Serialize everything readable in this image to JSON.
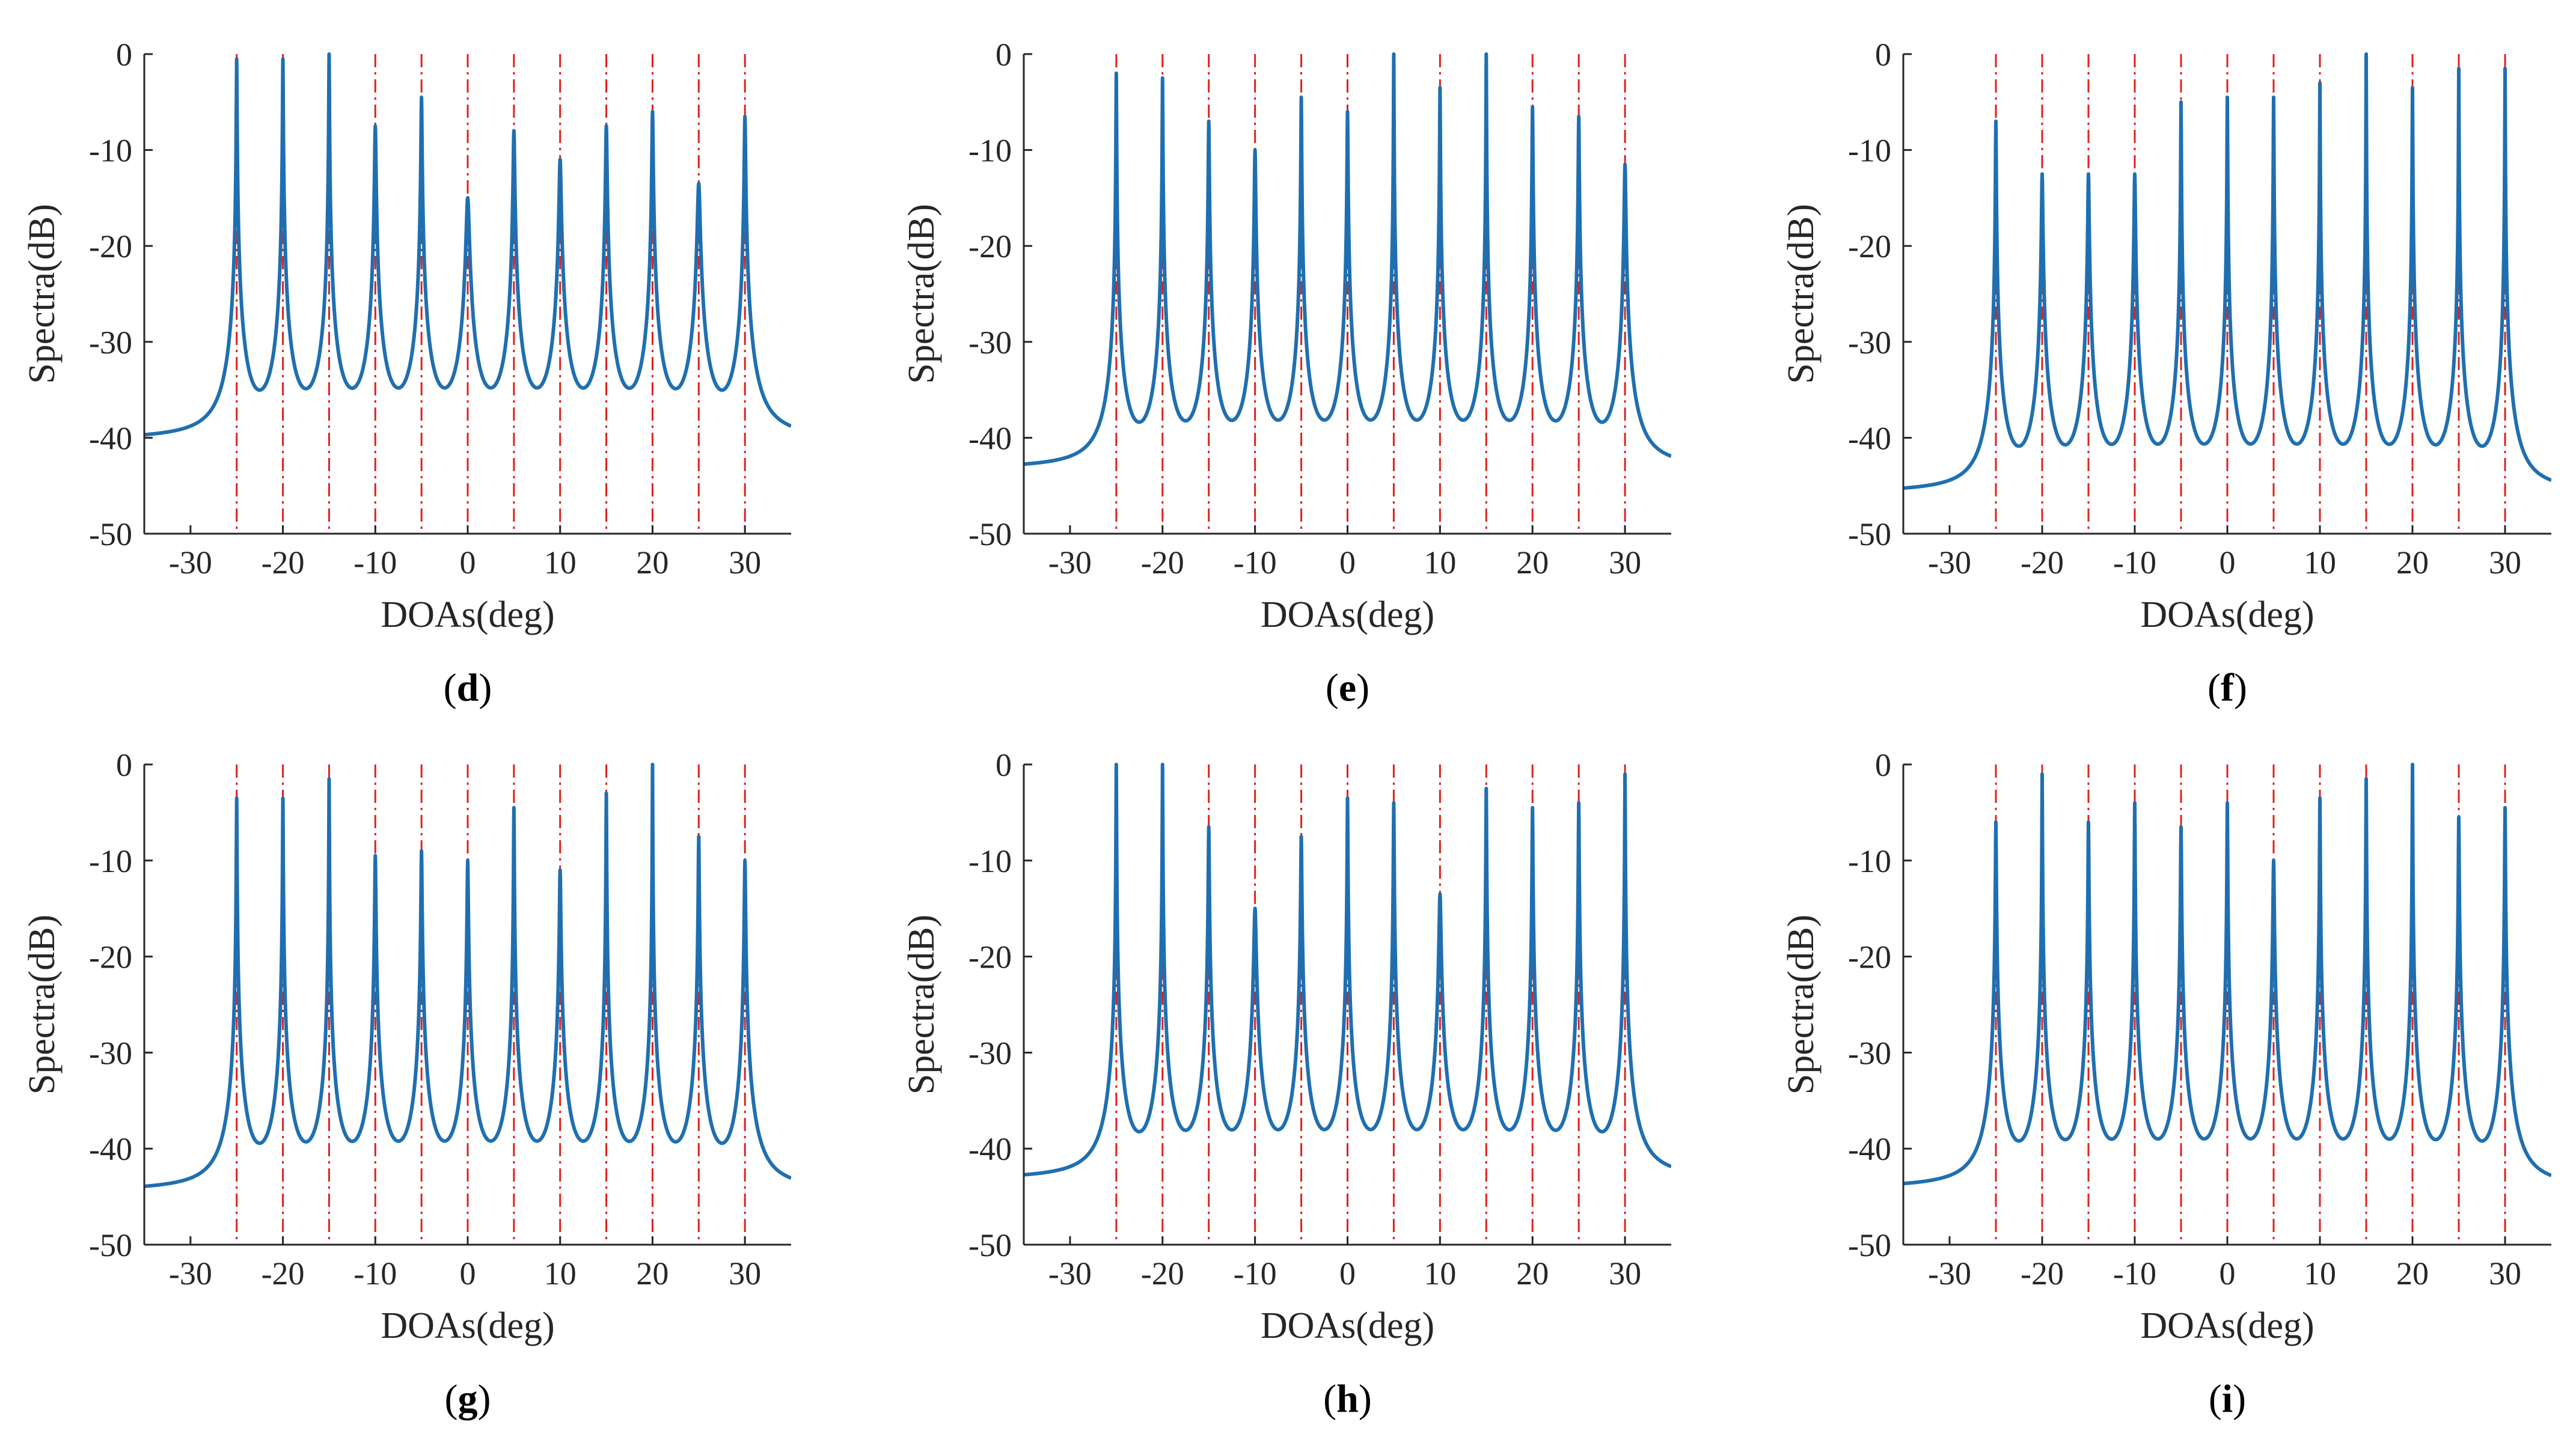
{
  "figure": {
    "colors": {
      "spectrum": "#1f6fb0",
      "marker": "#e0201c",
      "axis": "#262626"
    }
  },
  "chart_data": [
    {
      "type": "line",
      "panel": "(d)",
      "panel_letter": "d",
      "xlabel": "DOAs(deg)",
      "ylabel": "Spectra(dB)",
      "xlim": [
        -35,
        35
      ],
      "ylim": [
        -50,
        0
      ],
      "xticks": [
        -30,
        -20,
        -10,
        0,
        10,
        20,
        30
      ],
      "yticks": [
        0,
        -10,
        -20,
        -30,
        -40,
        -50
      ],
      "true_doas": [
        -25,
        -20,
        -15,
        -10,
        -5,
        0,
        5,
        10,
        15,
        20,
        25,
        30
      ],
      "series": [
        {
          "name": "spectrum",
          "floor_db": -40.3,
          "valley_db": -40.0,
          "peaks": [
            {
              "doa": -25,
              "db": -0.5
            },
            {
              "doa": -20,
              "db": -0.5
            },
            {
              "doa": -15,
              "db": 0
            },
            {
              "doa": -10,
              "db": -7.5
            },
            {
              "doa": -5,
              "db": -4.5
            },
            {
              "doa": 0,
              "db": -15
            },
            {
              "doa": 5,
              "db": -8
            },
            {
              "doa": 10,
              "db": -11
            },
            {
              "doa": 15,
              "db": -7.5
            },
            {
              "doa": 20,
              "db": -6
            },
            {
              "doa": 25,
              "db": -13.5
            },
            {
              "doa": 30,
              "db": -6.5
            }
          ]
        }
      ]
    },
    {
      "type": "line",
      "panel": "(e)",
      "panel_letter": "e",
      "xlabel": "DOAs(deg)",
      "ylabel": "Spectra(dB)",
      "xlim": [
        -35,
        35
      ],
      "ylim": [
        -50,
        0
      ],
      "xticks": [
        -30,
        -20,
        -10,
        0,
        10,
        20,
        30
      ],
      "yticks": [
        0,
        -10,
        -20,
        -30,
        -40,
        -50
      ],
      "true_doas": [
        -25,
        -20,
        -15,
        -10,
        -5,
        0,
        5,
        10,
        15,
        20,
        25,
        30
      ],
      "series": [
        {
          "name": "spectrum",
          "floor_db": -43.3,
          "valley_db": -43.5,
          "peaks": [
            {
              "doa": -25,
              "db": -2
            },
            {
              "doa": -20,
              "db": -2.5
            },
            {
              "doa": -15,
              "db": -7
            },
            {
              "doa": -10,
              "db": -10
            },
            {
              "doa": -5,
              "db": -4.5
            },
            {
              "doa": 0,
              "db": -6
            },
            {
              "doa": 5,
              "db": 0
            },
            {
              "doa": 10,
              "db": -3.5
            },
            {
              "doa": 15,
              "db": 0
            },
            {
              "doa": 20,
              "db": -5.5
            },
            {
              "doa": 25,
              "db": -6.5
            },
            {
              "doa": 30,
              "db": -11.5
            }
          ]
        }
      ]
    },
    {
      "type": "line",
      "panel": "(f)",
      "panel_letter": "f",
      "xlabel": "DOAs(deg)",
      "ylabel": "Spectra(dB)",
      "xlim": [
        -35,
        35
      ],
      "ylim": [
        -50,
        0
      ],
      "xticks": [
        -30,
        -20,
        -10,
        0,
        10,
        20,
        30
      ],
      "yticks": [
        0,
        -10,
        -20,
        -30,
        -40,
        -50
      ],
      "true_doas": [
        -25,
        -20,
        -15,
        -10,
        -5,
        0,
        5,
        10,
        15,
        20,
        25,
        30
      ],
      "series": [
        {
          "name": "spectrum",
          "floor_db": -45.8,
          "valley_db": -46.0,
          "peaks": [
            {
              "doa": -25,
              "db": -7
            },
            {
              "doa": -20,
              "db": -12.5
            },
            {
              "doa": -15,
              "db": -12.5
            },
            {
              "doa": -10,
              "db": -12.5
            },
            {
              "doa": -5,
              "db": -5
            },
            {
              "doa": 0,
              "db": -4.5
            },
            {
              "doa": 5,
              "db": -4.5
            },
            {
              "doa": 10,
              "db": -3
            },
            {
              "doa": 15,
              "db": 0
            },
            {
              "doa": 20,
              "db": -3.5
            },
            {
              "doa": 25,
              "db": -1.5
            },
            {
              "doa": 30,
              "db": -1.5
            }
          ]
        }
      ]
    },
    {
      "type": "line",
      "panel": "(g)",
      "panel_letter": "g",
      "xlabel": "DOAs(deg)",
      "ylabel": "Spectra(dB)",
      "xlim": [
        -35,
        35
      ],
      "ylim": [
        -50,
        0
      ],
      "xticks": [
        -30,
        -20,
        -10,
        0,
        10,
        20,
        30
      ],
      "yticks": [
        0,
        -10,
        -20,
        -30,
        -40,
        -50
      ],
      "true_doas": [
        -25,
        -20,
        -15,
        -10,
        -5,
        0,
        5,
        10,
        15,
        20,
        25,
        30
      ],
      "series": [
        {
          "name": "spectrum",
          "floor_db": -44.5,
          "valley_db": -44.5,
          "peaks": [
            {
              "doa": -25,
              "db": -3.5
            },
            {
              "doa": -20,
              "db": -3.5
            },
            {
              "doa": -15,
              "db": -1.5
            },
            {
              "doa": -10,
              "db": -9.5
            },
            {
              "doa": -5,
              "db": -9
            },
            {
              "doa": 0,
              "db": -10
            },
            {
              "doa": 5,
              "db": -4.5
            },
            {
              "doa": 10,
              "db": -11
            },
            {
              "doa": 15,
              "db": -3
            },
            {
              "doa": 20,
              "db": 0
            },
            {
              "doa": 25,
              "db": -7.5
            },
            {
              "doa": 30,
              "db": -10
            }
          ]
        }
      ]
    },
    {
      "type": "line",
      "panel": "(h)",
      "panel_letter": "h",
      "xlabel": "DOAs(deg)",
      "ylabel": "Spectra(dB)",
      "xlim": [
        -35,
        35
      ],
      "ylim": [
        -50,
        0
      ],
      "xticks": [
        -30,
        -20,
        -10,
        0,
        10,
        20,
        30
      ],
      "yticks": [
        0,
        -10,
        -20,
        -30,
        -40,
        -50
      ],
      "true_doas": [
        -25,
        -20,
        -15,
        -10,
        -5,
        0,
        5,
        10,
        15,
        20,
        25,
        30
      ],
      "series": [
        {
          "name": "spectrum",
          "floor_db": -43.3,
          "valley_db": -43.3,
          "peaks": [
            {
              "doa": -25,
              "db": 0
            },
            {
              "doa": -20,
              "db": 0
            },
            {
              "doa": -15,
              "db": -6.5
            },
            {
              "doa": -10,
              "db": -15
            },
            {
              "doa": -5,
              "db": -7.5
            },
            {
              "doa": 0,
              "db": -3.5
            },
            {
              "doa": 5,
              "db": -4
            },
            {
              "doa": 10,
              "db": -13.5
            },
            {
              "doa": 15,
              "db": -2.5
            },
            {
              "doa": 20,
              "db": -4.5
            },
            {
              "doa": 25,
              "db": -4
            },
            {
              "doa": 30,
              "db": -1
            }
          ]
        }
      ]
    },
    {
      "type": "line",
      "panel": "(i)",
      "panel_letter": "i",
      "xlabel": "DOAs(deg)",
      "ylabel": "Spectra(dB)",
      "xlim": [
        -35,
        35
      ],
      "ylim": [
        -50,
        0
      ],
      "xticks": [
        -30,
        -20,
        -10,
        0,
        10,
        20,
        30
      ],
      "yticks": [
        0,
        -10,
        -20,
        -30,
        -40,
        -50
      ],
      "true_doas": [
        -25,
        -20,
        -15,
        -10,
        -5,
        0,
        5,
        10,
        15,
        20,
        25,
        30
      ],
      "series": [
        {
          "name": "spectrum",
          "floor_db": -44.2,
          "valley_db": -44.3,
          "peaks": [
            {
              "doa": -25,
              "db": -6
            },
            {
              "doa": -20,
              "db": -1
            },
            {
              "doa": -15,
              "db": -6
            },
            {
              "doa": -10,
              "db": -4
            },
            {
              "doa": -5,
              "db": -6.5
            },
            {
              "doa": 0,
              "db": -4
            },
            {
              "doa": 5,
              "db": -10
            },
            {
              "doa": 10,
              "db": -3.5
            },
            {
              "doa": 15,
              "db": -1.5
            },
            {
              "doa": 20,
              "db": 0
            },
            {
              "doa": 25,
              "db": -5.5
            },
            {
              "doa": 30,
              "db": -4.5
            }
          ]
        }
      ]
    }
  ]
}
